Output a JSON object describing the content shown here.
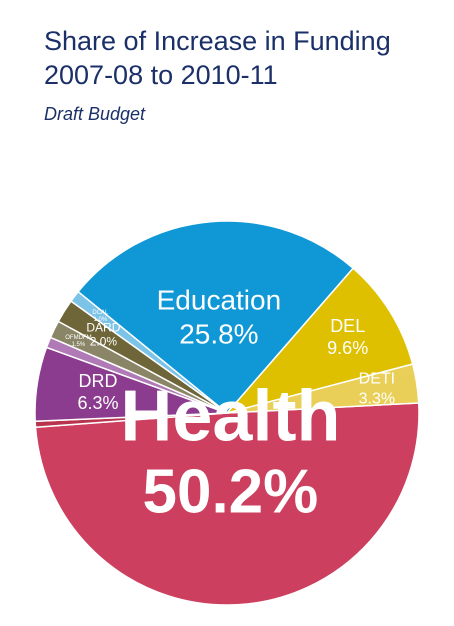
{
  "chart_data": {
    "type": "pie",
    "title_lines": [
      "Share of Increase in Funding",
      "2007-08 to 2010-11"
    ],
    "subtitle": "Draft Budget",
    "slices": [
      {
        "label": "Health",
        "value_text": "50.2%",
        "value": 50.2,
        "color": "#cd3f5e"
      },
      {
        "label": "",
        "value_text": "",
        "value": 0.5,
        "color": "#b8334d"
      },
      {
        "label": "DRD",
        "value_text": "6.3%",
        "value": 6.3,
        "color": "#8b3c8e"
      },
      {
        "label": "",
        "value_text": "",
        "value": 0.9,
        "color": "#b07ab7"
      },
      {
        "label": "OFMDFM",
        "value_text": "1.5%",
        "value": 1.5,
        "color": "#8a8566"
      },
      {
        "label": "DARD",
        "value_text": "2.0%",
        "value": 2.0,
        "color": "#6e6538"
      },
      {
        "label": "DCAL",
        "value_text": "1.0%",
        "value": 1.0,
        "color": "#7cc3e8"
      },
      {
        "label": "Education",
        "value_text": "25.8%",
        "value": 25.8,
        "color": "#0f97d6"
      },
      {
        "label": "DEL",
        "value_text": "9.6%",
        "value": 9.6,
        "color": "#dec000"
      },
      {
        "label": "DETI",
        "value_text": "3.3%",
        "value": 3.3,
        "color": "#e9cf57"
      }
    ]
  }
}
